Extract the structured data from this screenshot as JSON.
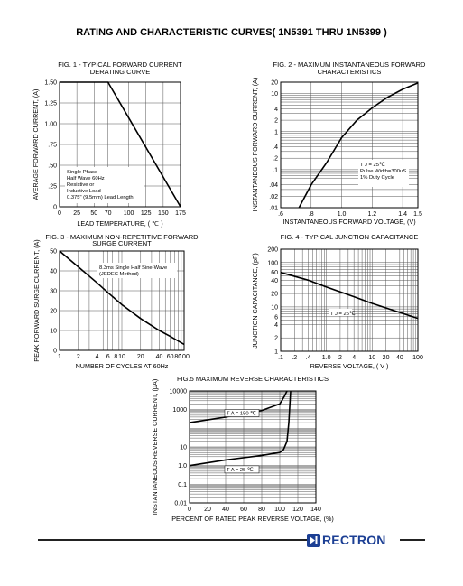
{
  "page": {
    "title": "RATING AND CHARACTERISTIC CURVES( 1N5391 THRU 1N5399 )",
    "brand": "RECTRON",
    "brand_logo_icon": "rectron-diode-logo-icon",
    "brand_color": "#1c3f94"
  },
  "chart_data": [
    {
      "id": "fig1",
      "type": "line",
      "title": [
        "FIG. 1 - TYPICAL FORWARD CURRENT",
        "DERATING CURVE"
      ],
      "xlabel": "LEAD TEMPERATURE, ( ℃ )",
      "ylabel": "AVERAGE FORWARD CURRENT, (A)",
      "xlim": [
        0,
        175
      ],
      "ylim": [
        0,
        1.5
      ],
      "xticks": [
        0,
        25,
        50,
        70,
        100,
        125,
        150,
        175
      ],
      "xtick_labels": [
        "0",
        "25",
        "50",
        "70",
        "100",
        "125",
        "150",
        "175"
      ],
      "yticks": [
        0,
        0.25,
        0.5,
        0.75,
        1.0,
        1.25,
        1.5
      ],
      "ytick_labels": [
        "0",
        ".25",
        ".50",
        ".75",
        "1.00",
        "1.25",
        "1.50"
      ],
      "grid": true,
      "notes": [
        "Single Phase",
        "Half Wave 60Hz",
        "Resistive or",
        "Inductive Load",
        "0.375\" (9.5mm) Lead Length"
      ],
      "series": [
        {
          "x": [
            0,
            70,
            175
          ],
          "y": [
            1.5,
            1.5,
            0
          ]
        }
      ]
    },
    {
      "id": "fig2",
      "type": "line",
      "title": [
        "FIG. 2 - MAXIMUM INSTANTANEOUS FORWARD",
        "CHARACTERISTICS"
      ],
      "xlabel": "INSTANTANEOUS FORWARD VOLTAGE, (V)",
      "ylabel": "INSTANTANEOUS FORWARD CURRENT, (A)",
      "xlim": [
        0.6,
        1.5
      ],
      "ylim": [
        0.01,
        20
      ],
      "yscale": "log",
      "xticks": [
        0.6,
        0.8,
        1.0,
        1.2,
        1.4,
        1.5
      ],
      "xtick_labels": [
        ".6",
        ".8",
        "1.0",
        "1.2",
        "1.4",
        "1.5"
      ],
      "yticks": [
        0.01,
        0.02,
        0.04,
        0.1,
        0.2,
        0.4,
        1,
        2,
        4,
        10,
        20
      ],
      "ytick_labels": [
        ".01",
        ".02",
        ".04",
        ".1",
        ".2",
        ".4",
        "1",
        "2",
        "4",
        "10",
        "20"
      ],
      "grid": true,
      "notes": [
        "T J = 25℃",
        "Pulse Width=300uS",
        "1% Duty Cycle"
      ],
      "series": [
        {
          "x": [
            0.72,
            0.8,
            0.9,
            1.0,
            1.1,
            1.2,
            1.3,
            1.4,
            1.5
          ],
          "y": [
            0.01,
            0.04,
            0.15,
            0.7,
            2.0,
            4.2,
            8.0,
            13.0,
            19.0
          ]
        }
      ]
    },
    {
      "id": "fig3",
      "type": "line",
      "title": [
        "FIG. 3 - MAXIMUM NON-REPETITIVE FORWARD",
        "SURGE CURRENT"
      ],
      "xlabel": "NUMBER OF CYCLES AT 60Hz",
      "ylabel": "PEAK FORWARD SURGE CURRENT, (A)",
      "xlim": [
        1,
        100
      ],
      "ylim": [
        0,
        50
      ],
      "xscale": "log",
      "xticks": [
        1,
        2,
        4,
        6,
        8,
        10,
        20,
        40,
        60,
        80,
        100
      ],
      "xtick_labels": [
        "1",
        "2",
        "4",
        "6",
        "8",
        "10",
        "20",
        "40",
        "60",
        "80",
        "100"
      ],
      "yticks": [
        0,
        10,
        20,
        30,
        40,
        50
      ],
      "ytick_labels": [
        "0",
        "10",
        "20",
        "30",
        "40",
        "50"
      ],
      "grid": true,
      "notes": [
        "8.3ms Single Half Sine-Wave",
        "(JEDEC Method)"
      ],
      "series": [
        {
          "x": [
            1,
            2,
            4,
            6,
            10,
            20,
            40,
            60,
            100
          ],
          "y": [
            50,
            42,
            34,
            29,
            23,
            16,
            10,
            7,
            3
          ]
        }
      ]
    },
    {
      "id": "fig4",
      "type": "line",
      "title": [
        "FIG. 4 - TYPICAL JUNCTION CAPACITANCE"
      ],
      "xlabel": "REVERSE VOLTAGE, ( V )",
      "ylabel": "JUNCTION CAPACITANCE, (pF)",
      "xlim": [
        0.1,
        100
      ],
      "ylim": [
        1,
        200
      ],
      "xscale": "log",
      "yscale": "log",
      "xticks": [
        0.1,
        0.2,
        0.4,
        1.0,
        2,
        4,
        10,
        20,
        40,
        100
      ],
      "xtick_labels": [
        ".1",
        ".2",
        ".4",
        "1.0",
        "2",
        "4",
        "10",
        "20",
        "40",
        "100"
      ],
      "yticks": [
        1,
        2,
        4,
        6,
        10,
        20,
        40,
        60,
        100,
        200
      ],
      "ytick_labels": [
        "1",
        "2",
        "4",
        "6",
        "10",
        "20",
        "40",
        "60",
        "100",
        "200"
      ],
      "grid": true,
      "notes": [
        "T J = 25℃"
      ],
      "series": [
        {
          "x": [
            0.1,
            0.4,
            1,
            4,
            10,
            40,
            100
          ],
          "y": [
            60,
            40,
            28,
            17,
            12,
            7.5,
            5.5
          ]
        }
      ]
    },
    {
      "id": "fig5",
      "type": "line",
      "title": [
        "FIG.5 MAXIMUM REVERSE  CHARACTERISTICS"
      ],
      "xlabel": "PERCENT OF RATED PEAK REVERSE VOLTAGE, (%)",
      "ylabel": "INSTANTANEOUS REVERSE  CURRENT, (μA)",
      "xlim": [
        0,
        140
      ],
      "ylim": [
        0.01,
        10000
      ],
      "yscale": "log",
      "xticks": [
        0,
        20,
        40,
        60,
        80,
        100,
        120,
        140
      ],
      "xtick_labels": [
        "0",
        "20",
        "40",
        "60",
        "80",
        "100",
        "120",
        "140"
      ],
      "yticks": [
        0.01,
        0.1,
        1,
        10,
        1000,
        10000
      ],
      "ytick_labels": [
        "0.01",
        "0.1",
        "1.0",
        "10",
        "1000",
        "10000"
      ],
      "grid": true,
      "series": [
        {
          "name": "T A = 150 ℃",
          "x": [
            0,
            40,
            80,
            100,
            105,
            108
          ],
          "y": [
            200,
            400,
            900,
            2000,
            5000,
            10000
          ]
        },
        {
          "name": "T A = 25 ℃",
          "x": [
            0,
            40,
            80,
            100,
            104,
            108,
            110,
            112
          ],
          "y": [
            1,
            2,
            3.5,
            5,
            7,
            20,
            200,
            10000
          ]
        }
      ]
    }
  ]
}
